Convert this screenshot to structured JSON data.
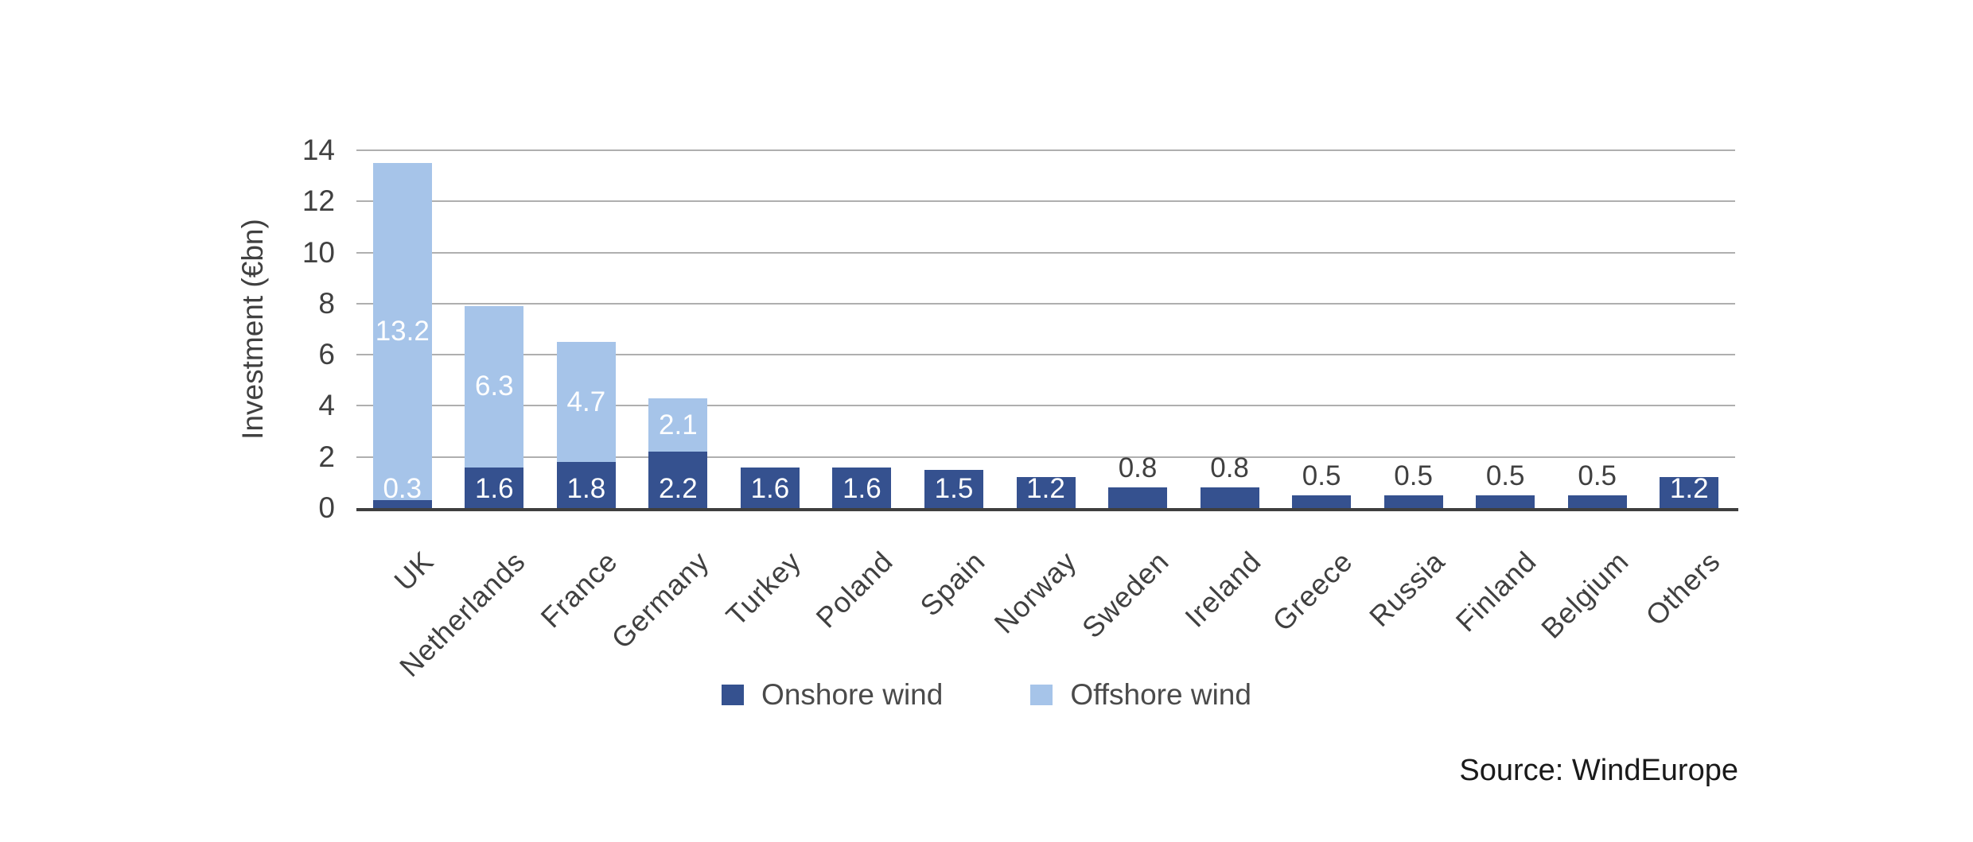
{
  "chart_data": {
    "type": "bar",
    "stacked": true,
    "title": "",
    "categories": [
      "UK",
      "Netherlands",
      "France",
      "Germany",
      "Turkey",
      "Poland",
      "Spain",
      "Norway",
      "Sweden",
      "Ireland",
      "Greece",
      "Russia",
      "Finland",
      "Belgium",
      "Others"
    ],
    "series": [
      {
        "name": "Onshore wind",
        "color": "#35518F",
        "values": [
          0.3,
          1.6,
          1.8,
          2.2,
          1.6,
          1.6,
          1.5,
          1.2,
          0.8,
          0.8,
          0.5,
          0.5,
          0.5,
          0.5,
          1.2
        ]
      },
      {
        "name": "Offshore wind",
        "color": "#A6C4E9",
        "values": [
          13.2,
          6.3,
          4.7,
          2.1,
          0,
          0,
          0,
          0,
          0,
          0,
          0,
          0,
          0,
          0,
          0
        ]
      }
    ],
    "ylabel": "Investment (€bn)",
    "ylim": [
      0,
      14
    ],
    "yticks": [
      0,
      2,
      4,
      6,
      8,
      10,
      12,
      14
    ],
    "grid": true,
    "legend_position": "bottom-center",
    "label_color_inside": "#FFFFFF",
    "label_color_outside": "#404040"
  },
  "axis": {
    "line_color": "#3F3F3F",
    "grid_color": "#AFAFAF",
    "text_color": "#404040"
  },
  "source": {
    "label": "Source: WindEurope"
  }
}
